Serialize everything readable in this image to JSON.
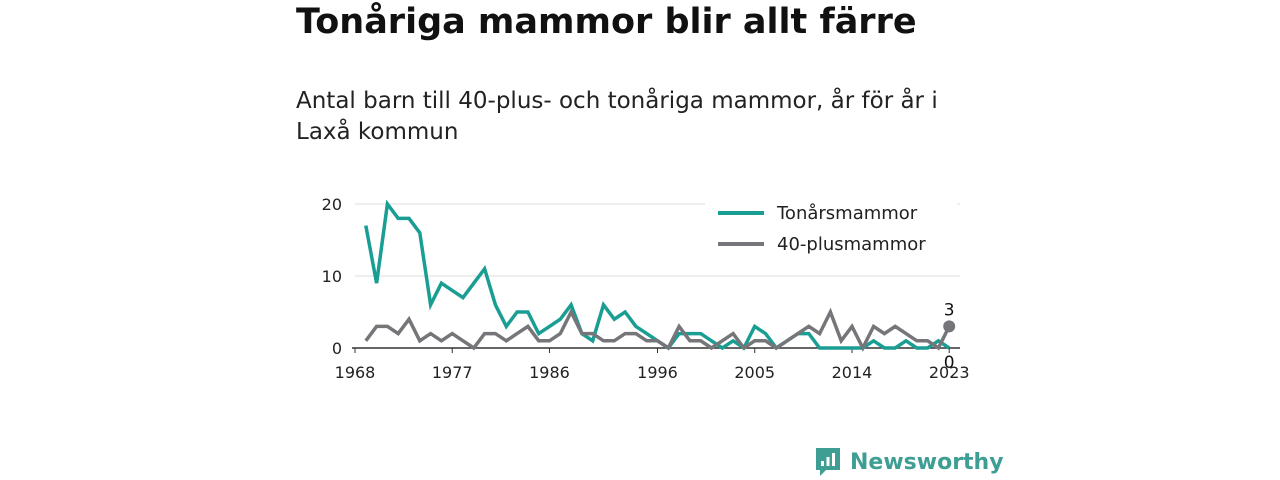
{
  "title": "Tonåriga mammor blir allt färre",
  "subtitle": "Antal barn till 40-plus- och tonåriga mammor, år för år i Laxå kommun",
  "brand": {
    "name": "Newsworthy",
    "icon": "newsworthy-logo-icon",
    "color": "#3f9e94"
  },
  "chart_data": {
    "type": "line",
    "title": "Tonåriga mammor blir allt färre",
    "subtitle": "Antal barn till 40-plus- och tonåriga mammor, år för år i Laxå kommun",
    "xlabel": "",
    "ylabel": "",
    "x": [
      1969,
      1970,
      1971,
      1972,
      1973,
      1974,
      1975,
      1976,
      1977,
      1978,
      1979,
      1980,
      1981,
      1982,
      1983,
      1984,
      1985,
      1986,
      1987,
      1988,
      1989,
      1990,
      1991,
      1992,
      1993,
      1994,
      1995,
      1996,
      1997,
      1998,
      1999,
      2000,
      2001,
      2002,
      2003,
      2004,
      2005,
      2006,
      2007,
      2008,
      2009,
      2010,
      2011,
      2012,
      2013,
      2014,
      2015,
      2016,
      2017,
      2018,
      2019,
      2020,
      2021,
      2022,
      2023
    ],
    "x_ticks": [
      1968,
      1977,
      1986,
      1996,
      2005,
      2014,
      2023
    ],
    "y_ticks": [
      0,
      10,
      20
    ],
    "xlim": [
      1968,
      2024
    ],
    "ylim": [
      0,
      20
    ],
    "grid": true,
    "legend_position": "top-right",
    "series": [
      {
        "name": "Tonårsmammor",
        "color": "#1a9e94",
        "values": [
          17,
          9,
          20,
          18,
          18,
          16,
          6,
          9,
          8,
          7,
          9,
          11,
          6,
          3,
          5,
          5,
          2,
          3,
          4,
          6,
          2,
          1,
          6,
          4,
          5,
          3,
          2,
          1,
          0,
          2,
          2,
          2,
          1,
          0,
          1,
          0,
          3,
          2,
          0,
          1,
          2,
          2,
          0,
          0,
          0,
          0,
          0,
          1,
          0,
          0,
          1,
          0,
          0,
          1,
          0
        ],
        "end_label": "0"
      },
      {
        "name": "40-plusmammor",
        "color": "#76757a",
        "values": [
          1,
          3,
          3,
          2,
          4,
          1,
          2,
          1,
          2,
          1,
          0,
          2,
          2,
          1,
          2,
          3,
          1,
          1,
          2,
          5,
          2,
          2,
          1,
          1,
          2,
          2,
          1,
          1,
          0,
          3,
          1,
          1,
          0,
          1,
          2,
          0,
          1,
          1,
          0,
          1,
          2,
          3,
          2,
          5,
          1,
          3,
          0,
          3,
          2,
          3,
          2,
          1,
          1,
          0,
          3
        ],
        "end_label": "3"
      }
    ]
  }
}
